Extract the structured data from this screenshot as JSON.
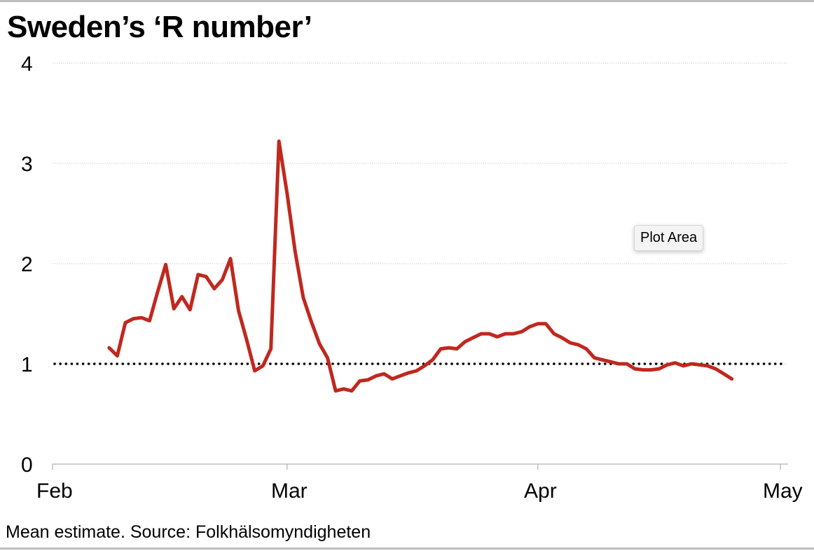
{
  "title": "Sweden’s ‘R number’",
  "footer": "Mean estimate. Source: Folkhälsomyndigheten",
  "tooltip": "Plot Area",
  "colors": {
    "series": "#c0281e",
    "reference": "#000000",
    "grid": "#bdbdbd",
    "axis": "#bdbdbd"
  },
  "chart_data": {
    "type": "line",
    "title": "Sweden’s ‘R number’",
    "xlabel": "",
    "ylabel": "",
    "x_ticks": [
      "Feb",
      "Mar",
      "Apr",
      "May"
    ],
    "y_ticks": [
      "0",
      "1",
      "2",
      "3",
      "4"
    ],
    "ylim": [
      0,
      4
    ],
    "xlim": [
      "2020-02-01",
      "2020-05-01"
    ],
    "grid": "horizontal dotted",
    "reference_line": {
      "y": 1,
      "style": "dotted"
    },
    "series": [
      {
        "x": [
          "2020-02-08",
          "2020-02-09",
          "2020-02-10",
          "2020-02-11",
          "2020-02-12",
          "2020-02-13",
          "2020-02-14",
          "2020-02-15",
          "2020-02-16",
          "2020-02-17",
          "2020-02-18",
          "2020-02-19",
          "2020-02-20",
          "2020-02-21",
          "2020-02-22",
          "2020-02-23",
          "2020-02-24",
          "2020-02-25",
          "2020-02-26",
          "2020-02-27",
          "2020-02-28",
          "2020-02-29",
          "2020-03-01",
          "2020-03-02",
          "2020-03-03",
          "2020-03-04",
          "2020-03-05",
          "2020-03-06",
          "2020-03-07",
          "2020-03-08",
          "2020-03-09",
          "2020-03-10",
          "2020-03-11",
          "2020-03-12",
          "2020-03-13",
          "2020-03-14",
          "2020-03-15",
          "2020-03-16",
          "2020-03-17",
          "2020-03-18",
          "2020-03-19",
          "2020-03-20",
          "2020-03-21",
          "2020-03-22",
          "2020-03-23",
          "2020-03-24",
          "2020-03-25",
          "2020-03-26",
          "2020-03-27",
          "2020-03-28",
          "2020-03-29",
          "2020-03-30",
          "2020-03-31",
          "2020-04-01",
          "2020-04-02",
          "2020-04-03",
          "2020-04-04",
          "2020-04-05",
          "2020-04-06",
          "2020-04-07",
          "2020-04-08",
          "2020-04-09",
          "2020-04-10",
          "2020-04-11",
          "2020-04-12",
          "2020-04-13",
          "2020-04-14",
          "2020-04-15",
          "2020-04-16",
          "2020-04-17",
          "2020-04-18",
          "2020-04-19",
          "2020-04-20",
          "2020-04-21",
          "2020-04-22",
          "2020-04-23",
          "2020-04-24",
          "2020-04-25"
        ],
        "values": [
          1.16,
          1.08,
          1.41,
          1.45,
          1.46,
          1.43,
          1.72,
          1.99,
          1.55,
          1.67,
          1.54,
          1.89,
          1.87,
          1.75,
          1.84,
          2.05,
          1.53,
          1.24,
          0.93,
          0.98,
          1.15,
          3.22,
          2.7,
          2.12,
          1.66,
          1.42,
          1.2,
          1.06,
          0.73,
          0.75,
          0.73,
          0.83,
          0.84,
          0.88,
          0.9,
          0.85,
          0.88,
          0.91,
          0.93,
          0.98,
          1.04,
          1.15,
          1.16,
          1.15,
          1.22,
          1.26,
          1.3,
          1.3,
          1.27,
          1.3,
          1.3,
          1.32,
          1.37,
          1.4,
          1.4,
          1.3,
          1.26,
          1.21,
          1.19,
          1.15,
          1.06,
          1.04,
          1.02,
          1.0,
          1.0,
          0.95,
          0.94,
          0.94,
          0.95,
          0.99,
          1.01,
          0.98,
          1.0,
          0.99,
          0.98,
          0.95,
          0.9,
          0.85
        ]
      }
    ]
  }
}
